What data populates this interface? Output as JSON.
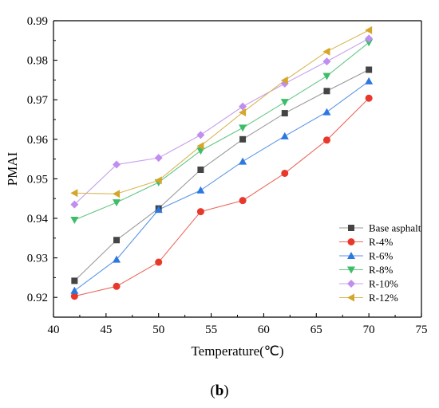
{
  "panel_label": {
    "open": "(",
    "letter": "b",
    "close": ")"
  },
  "chart_data": {
    "type": "line",
    "xlabel": "Temperature(℃)",
    "ylabel": "PMAI",
    "xlim": [
      40,
      75
    ],
    "ylim": [
      0.915,
      0.99
    ],
    "xticks": [
      40,
      45,
      50,
      55,
      60,
      65,
      70,
      75
    ],
    "yticks": [
      0.92,
      0.93,
      0.94,
      0.95,
      0.96,
      0.97,
      0.98,
      0.99
    ],
    "x": [
      42,
      46,
      50,
      54,
      58,
      62,
      66,
      70
    ],
    "grid": false,
    "legend_position": "bottom-right",
    "series": [
      {
        "name": "Base asphalt",
        "marker": "square",
        "color": "#444444",
        "line_color": "#9a9a9a",
        "values": [
          0.9242,
          0.9345,
          0.9425,
          0.9523,
          0.96,
          0.9666,
          0.9722,
          0.9776
        ]
      },
      {
        "name": "R-4%",
        "marker": "circle",
        "color": "#e8372b",
        "line_color": "#ea6a5e",
        "values": [
          0.9203,
          0.9228,
          0.9289,
          0.9417,
          0.9445,
          0.9514,
          0.9598,
          0.9704
        ]
      },
      {
        "name": "R-6%",
        "marker": "triangle-up",
        "color": "#2b78e0",
        "line_color": "#5b96e6",
        "values": [
          0.9217,
          0.9296,
          0.9422,
          0.9471,
          0.9544,
          0.9608,
          0.9669,
          0.9747
        ]
      },
      {
        "name": "R-8%",
        "marker": "triangle-down",
        "color": "#3dbd6a",
        "line_color": "#63c786",
        "values": [
          0.9396,
          0.944,
          0.9491,
          0.9571,
          0.9629,
          0.9694,
          0.976,
          0.9845
        ]
      },
      {
        "name": "R-10%",
        "marker": "diamond",
        "color": "#c08ef0",
        "line_color": "#c6a0ee",
        "values": [
          0.9435,
          0.9536,
          0.9553,
          0.9611,
          0.9683,
          0.9741,
          0.9797,
          0.9855
        ]
      },
      {
        "name": "R-12%",
        "marker": "triangle-left",
        "color": "#d4a62a",
        "line_color": "#d9b552",
        "values": [
          0.9464,
          0.9462,
          0.9496,
          0.9583,
          0.9668,
          0.9749,
          0.9822,
          0.9876
        ]
      }
    ]
  }
}
